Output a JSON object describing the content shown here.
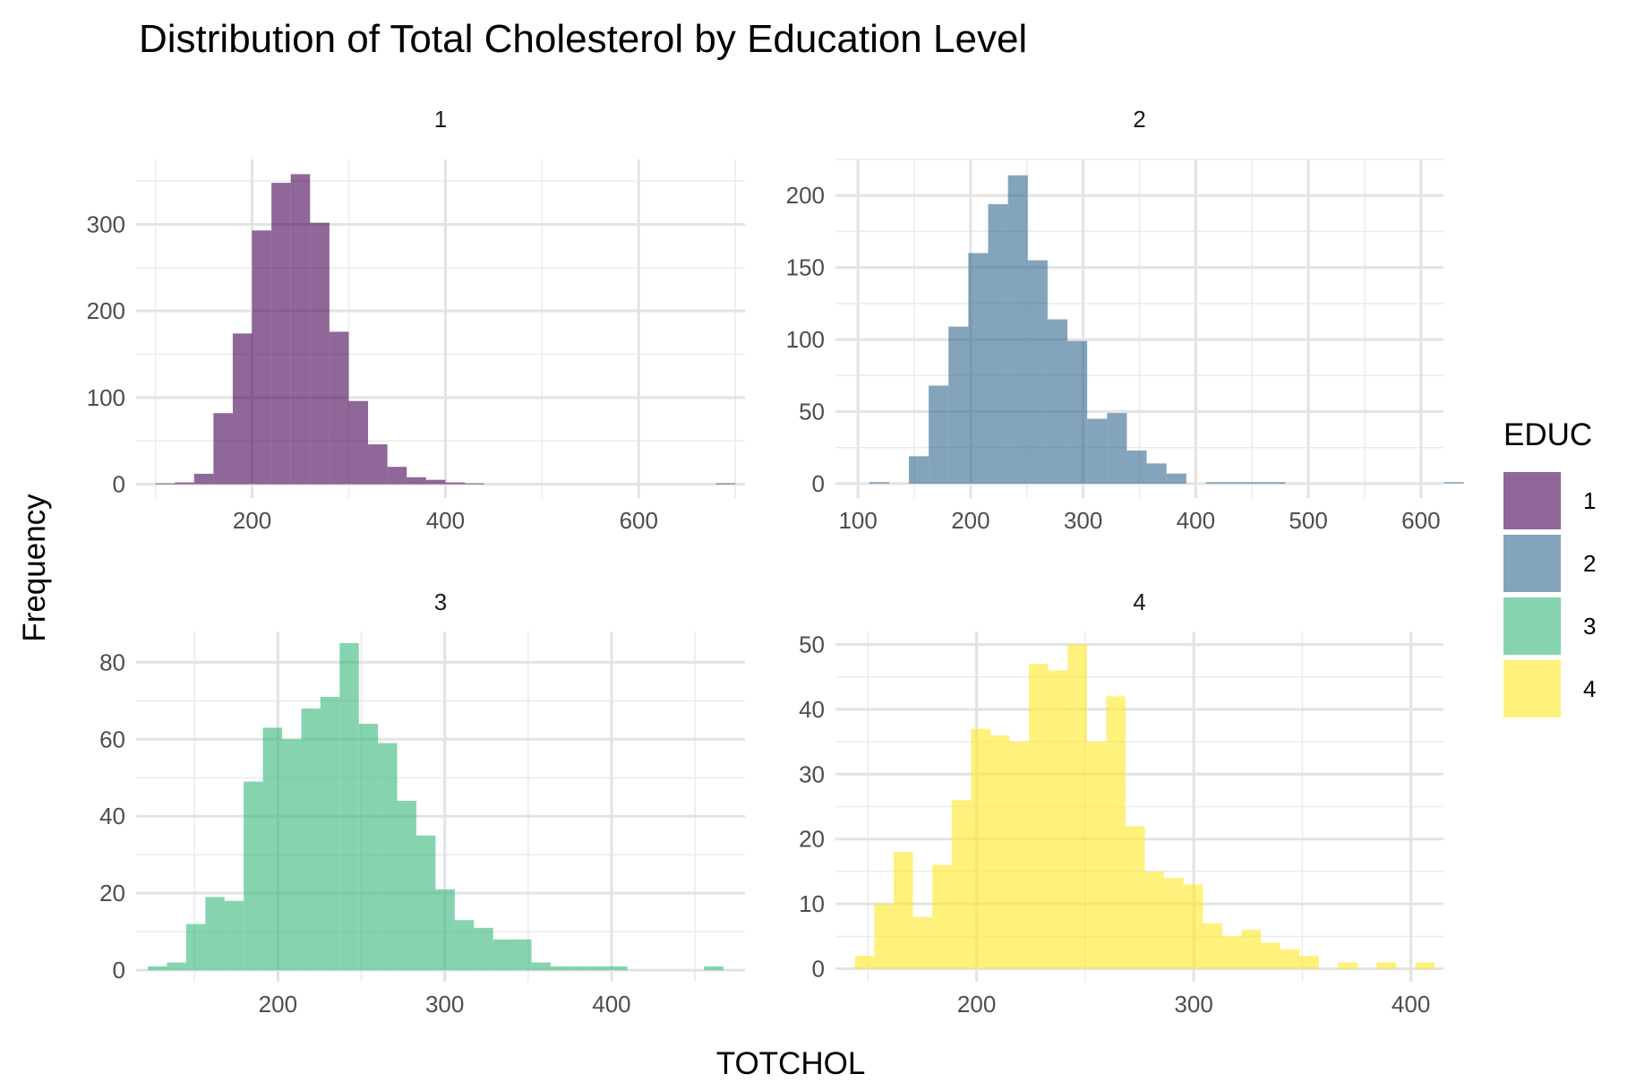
{
  "chart_data": {
    "type": "bar",
    "title": "Distribution of Total Cholesterol by Education Level",
    "xlabel": "TOTCHOL",
    "ylabel": "Frequency",
    "legend": {
      "title": "EDUC",
      "position": "right",
      "items": [
        {
          "label": "1",
          "color": "#440154"
        },
        {
          "label": "2",
          "color": "#31688E"
        },
        {
          "label": "3",
          "color": "#35B779"
        },
        {
          "label": "4",
          "color": "#FDE725"
        }
      ]
    },
    "grid": true,
    "panels": [
      {
        "strip": "1",
        "color": "#440154",
        "xlim": [
          80,
          710
        ],
        "ylim": [
          -16,
          375
        ],
        "x_ticks": [
          200,
          400,
          600
        ],
        "x_tick_labels": [
          "200",
          "400",
          "600"
        ],
        "y_ticks": [
          0,
          100,
          200,
          300
        ],
        "y_tick_labels": [
          "0",
          "100",
          "200",
          "300"
        ],
        "bin_start": 100,
        "bin_width": 20,
        "values": [
          1,
          2,
          12,
          82,
          174,
          293,
          348,
          358,
          302,
          176,
          96,
          46,
          20,
          8,
          5,
          2,
          1,
          0,
          0,
          0,
          0,
          0,
          0,
          0,
          0,
          0,
          0,
          0,
          0,
          1
        ]
      },
      {
        "strip": "2",
        "color": "#31688E",
        "xlim": [
          80,
          620
        ],
        "ylim": [
          -10,
          225
        ],
        "x_ticks": [
          100,
          200,
          300,
          400,
          500,
          600
        ],
        "x_tick_labels": [
          "100",
          "200",
          "300",
          "400",
          "500",
          "600"
        ],
        "y_ticks": [
          0,
          50,
          100,
          150,
          200
        ],
        "y_tick_labels": [
          "0",
          "50",
          "100",
          "150",
          "200"
        ],
        "bin_start": 110,
        "bin_width": 17.6,
        "values": [
          1,
          0,
          19,
          68,
          109,
          160,
          194,
          214,
          155,
          114,
          99,
          45,
          49,
          23,
          14,
          7,
          0,
          1,
          1,
          1,
          1,
          0,
          0,
          0,
          0,
          0,
          0,
          0,
          0,
          1
        ]
      },
      {
        "strip": "3",
        "color": "#35B779",
        "xlim": [
          115,
          480
        ],
        "ylim": [
          -3,
          88
        ],
        "x_ticks": [
          200,
          300,
          400
        ],
        "x_tick_labels": [
          "200",
          "300",
          "400"
        ],
        "y_ticks": [
          0,
          20,
          40,
          60,
          80
        ],
        "y_tick_labels": [
          "0",
          "20",
          "40",
          "60",
          "80"
        ],
        "bin_start": 122,
        "bin_width": 11.5,
        "values": [
          1,
          2,
          12,
          19,
          18,
          49,
          63,
          60,
          68,
          71,
          85,
          64,
          59,
          44,
          35,
          21,
          13,
          11,
          8,
          8,
          2,
          1,
          1,
          1,
          1,
          0,
          0,
          0,
          0,
          1
        ]
      },
      {
        "strip": "4",
        "color": "#FDE725",
        "xlim": [
          135,
          415
        ],
        "ylim": [
          -2,
          52
        ],
        "x_ticks": [
          200,
          300,
          400
        ],
        "x_tick_labels": [
          "200",
          "300",
          "400"
        ],
        "y_ticks": [
          0,
          10,
          20,
          30,
          40,
          50
        ],
        "y_tick_labels": [
          "0",
          "10",
          "20",
          "30",
          "40",
          "50"
        ],
        "bin_start": 144,
        "bin_width": 8.9,
        "values": [
          2,
          10,
          18,
          8,
          16,
          26,
          37,
          36,
          35,
          47,
          46,
          50,
          35,
          42,
          22,
          15,
          14,
          13,
          7,
          5,
          6,
          4,
          3,
          2,
          0,
          1,
          0,
          1,
          0,
          1
        ]
      }
    ]
  }
}
